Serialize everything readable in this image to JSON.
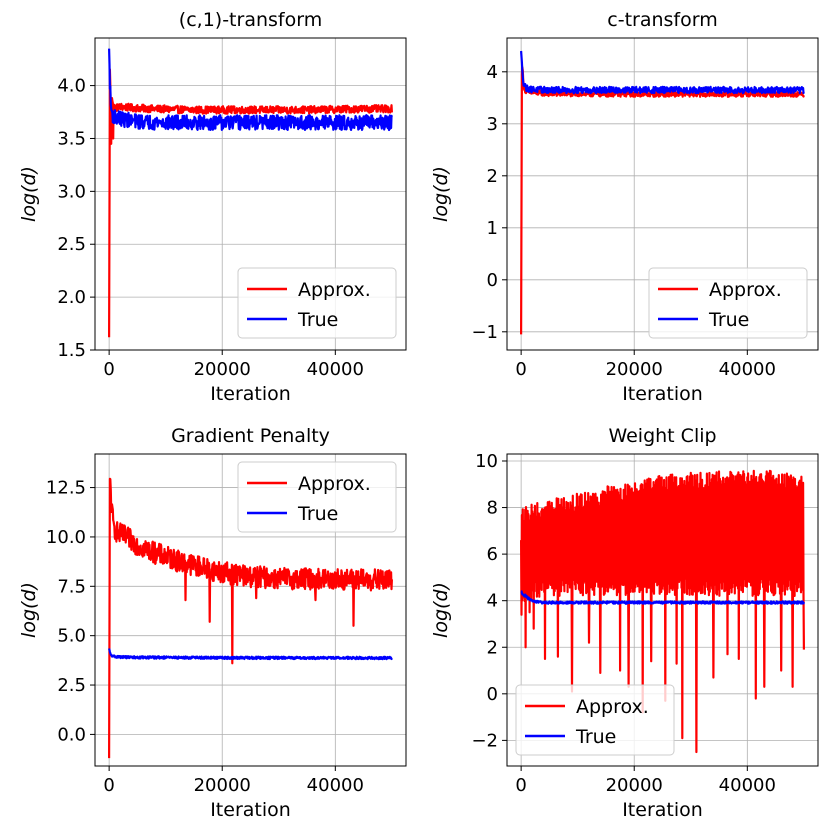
{
  "chart_data": [
    {
      "type": "line",
      "title": "(c,1)-transform",
      "xlabel": "Iteration",
      "ylabel": "log(d)",
      "xlim": [
        -2500,
        52500
      ],
      "ylim": [
        1.5,
        4.45
      ],
      "xticks": [
        0,
        20000,
        40000
      ],
      "xtick_labels": [
        "0",
        "20000",
        "40000"
      ],
      "yticks": [
        1.5,
        2.0,
        2.5,
        3.0,
        3.5,
        4.0
      ],
      "ytick_labels": [
        "1.5",
        "2.0",
        "2.5",
        "3.0",
        "3.5",
        "4.0"
      ],
      "grid": true,
      "legend_position": "lower-right",
      "series": [
        {
          "name": "Approx.",
          "color": "#ff0000",
          "x": [
            0,
            150,
            300,
            500,
            800,
            1200,
            2000,
            4000,
            8000,
            15000,
            25000,
            35000,
            45000,
            50000
          ],
          "y": [
            1.62,
            4.3,
            3.6,
            3.9,
            3.8,
            3.79,
            3.8,
            3.79,
            3.78,
            3.77,
            3.77,
            3.77,
            3.78,
            3.78
          ],
          "noise": 0.035,
          "spikes": [
            [
              350,
              3.45
            ],
            [
              700,
              3.5
            ]
          ]
        },
        {
          "name": "True",
          "color": "#0000ff",
          "x": [
            0,
            100,
            300,
            600,
            1200,
            2500,
            5000,
            10000,
            20000,
            30000,
            40000,
            50000
          ],
          "y": [
            4.35,
            4.1,
            3.8,
            3.72,
            3.7,
            3.68,
            3.66,
            3.65,
            3.65,
            3.65,
            3.65,
            3.65
          ],
          "noise": 0.07,
          "spikes": []
        }
      ]
    },
    {
      "type": "line",
      "title": "c-transform",
      "xlabel": "Iteration",
      "ylabel": "log(d)",
      "xlim": [
        -2500,
        52500
      ],
      "ylim": [
        -1.35,
        4.65
      ],
      "xticks": [
        0,
        20000,
        40000
      ],
      "xtick_labels": [
        "0",
        "20000",
        "40000"
      ],
      "yticks": [
        -1,
        0,
        1,
        2,
        3,
        4
      ],
      "ytick_labels": [
        "−1",
        "0",
        "1",
        "2",
        "3",
        "4"
      ],
      "grid": true,
      "legend_position": "lower-right",
      "series": [
        {
          "name": "Approx.",
          "color": "#ff0000",
          "x": [
            0,
            150,
            400,
            800,
            2000,
            5000,
            15000,
            30000,
            50000
          ],
          "y": [
            -1.05,
            4.25,
            3.75,
            3.62,
            3.6,
            3.58,
            3.57,
            3.57,
            3.57
          ],
          "noise": 0.05,
          "spikes": []
        },
        {
          "name": "True",
          "color": "#0000ff",
          "x": [
            0,
            100,
            400,
            900,
            2000,
            5000,
            15000,
            30000,
            50000
          ],
          "y": [
            4.4,
            4.2,
            3.8,
            3.68,
            3.66,
            3.65,
            3.65,
            3.65,
            3.65
          ],
          "noise": 0.06,
          "spikes": []
        }
      ]
    },
    {
      "type": "line",
      "title": "Gradient Penalty",
      "xlabel": "Iteration",
      "ylabel": "log(d)",
      "xlim": [
        -2500,
        52500
      ],
      "ylim": [
        -1.6,
        14.2
      ],
      "xticks": [
        0,
        20000,
        40000
      ],
      "xtick_labels": [
        "0",
        "20000",
        "40000"
      ],
      "yticks": [
        0.0,
        2.5,
        5.0,
        7.5,
        10.0,
        12.5
      ],
      "ytick_labels": [
        "0.0",
        "2.5",
        "5.0",
        "7.5",
        "10.0",
        "12.5"
      ],
      "grid": true,
      "legend_position": "top-right",
      "series": [
        {
          "name": "Approx.",
          "color": "#ff0000",
          "x": [
            0,
            150,
            400,
            800,
            1500,
            3000,
            5000,
            8000,
            12000,
            16000,
            20000,
            25000,
            30000,
            40000,
            50000
          ],
          "y": [
            -1.2,
            13.3,
            11.5,
            10.5,
            10.2,
            10.0,
            9.6,
            9.2,
            8.8,
            8.5,
            8.2,
            8.0,
            7.9,
            7.85,
            7.8
          ],
          "noise": 0.55,
          "spikes": [
            [
              17800,
              5.7
            ],
            [
              21800,
              3.6
            ],
            [
              43200,
              5.5
            ],
            [
              13500,
              6.8
            ],
            [
              26000,
              6.9
            ],
            [
              36500,
              6.8
            ]
          ]
        },
        {
          "name": "True",
          "color": "#0000ff",
          "x": [
            0,
            100,
            300,
            800,
            2000,
            5000,
            20000,
            50000
          ],
          "y": [
            4.35,
            4.2,
            4.0,
            3.95,
            3.92,
            3.9,
            3.88,
            3.87
          ],
          "noise": 0.06,
          "spikes": []
        }
      ]
    },
    {
      "type": "line",
      "title": "Weight Clip",
      "xlabel": "Iteration",
      "ylabel": "log(d)",
      "xlim": [
        -2500,
        52500
      ],
      "ylim": [
        -3.1,
        10.3
      ],
      "xticks": [
        0,
        20000,
        40000
      ],
      "xtick_labels": [
        "0",
        "20000",
        "40000"
      ],
      "yticks": [
        -2,
        0,
        2,
        4,
        6,
        8,
        10
      ],
      "ytick_labels": [
        "−2",
        "0",
        "2",
        "4",
        "6",
        "8",
        "10"
      ],
      "grid": true,
      "legend_position": "lower-left",
      "series": [
        {
          "name": "Approx.",
          "color": "#ff0000",
          "x": [
            0,
            300,
            1000,
            3000,
            6000,
            10000,
            15000,
            20000,
            25000,
            30000,
            35000,
            40000,
            45000,
            50000
          ],
          "y": [
            6.6,
            6.8,
            7.0,
            7.2,
            7.5,
            7.7,
            7.9,
            8.1,
            8.3,
            8.4,
            8.55,
            8.6,
            8.7,
            8.8
          ],
          "lower": [
            2.5,
            3.5,
            4.0,
            4.1,
            4.2,
            4.2,
            4.2,
            4.2,
            4.2,
            4.2,
            4.2,
            4.2,
            4.2,
            4.2
          ],
          "upper": [
            8.3,
            8.0,
            8.1,
            8.2,
            8.4,
            8.6,
            8.9,
            9.1,
            9.4,
            9.5,
            9.55,
            9.6,
            9.6,
            9.5
          ],
          "spikes": [
            [
              800,
              2.0
            ],
            [
              1500,
              3.5
            ],
            [
              2200,
              2.8
            ],
            [
              4200,
              1.5
            ],
            [
              6500,
              1.6
            ],
            [
              9000,
              0.1
            ],
            [
              12000,
              2.2
            ],
            [
              14000,
              0.9
            ],
            [
              17500,
              1.0
            ],
            [
              19000,
              0.3
            ],
            [
              21500,
              -0.8
            ],
            [
              23000,
              1.4
            ],
            [
              25500,
              -0.3
            ],
            [
              27500,
              1.3
            ],
            [
              28500,
              -1.9
            ],
            [
              31000,
              -2.5
            ],
            [
              34000,
              0.7
            ],
            [
              36500,
              1.7
            ],
            [
              38500,
              1.5
            ],
            [
              41500,
              -0.2
            ],
            [
              43000,
              0.3
            ],
            [
              46000,
              1.0
            ],
            [
              48000,
              0.3
            ],
            [
              50000,
              1.9
            ]
          ]
        },
        {
          "name": "True",
          "color": "#0000ff",
          "x": [
            0,
            200,
            800,
            1500,
            2500,
            4000,
            8000,
            20000,
            50000
          ],
          "y": [
            4.4,
            4.3,
            4.2,
            4.05,
            3.95,
            3.92,
            3.92,
            3.92,
            3.92
          ],
          "noise": 0.05,
          "spikes": []
        }
      ]
    }
  ]
}
